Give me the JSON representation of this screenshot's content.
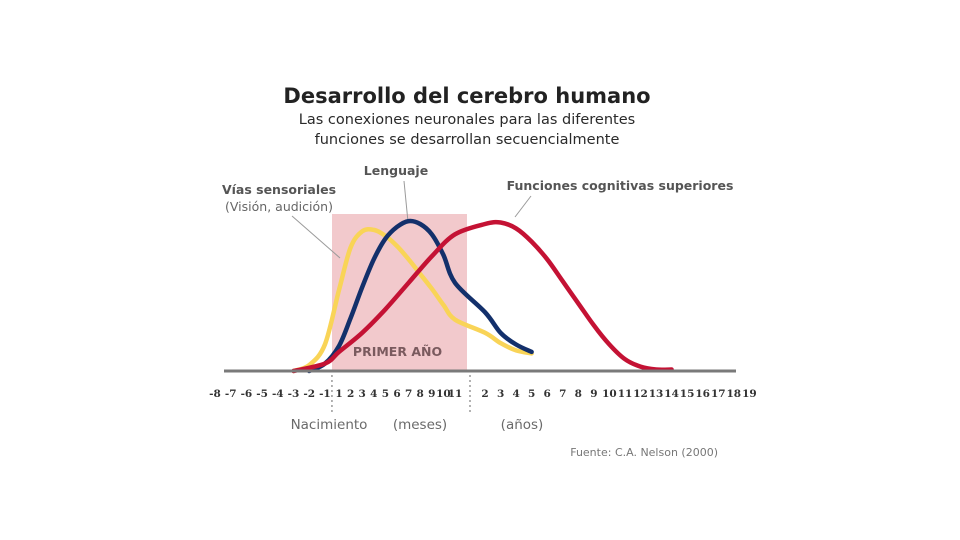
{
  "colors": {
    "sensory": "#f9d457",
    "language": "#13306b",
    "cognitive": "#c41234",
    "region": "#f2c9cc",
    "axis": "#7a7a7a",
    "leader": "#9a9a9a"
  },
  "chart_data": {
    "type": "line",
    "title": "Desarrollo del cerebro humano",
    "subtitle_lines": [
      "Las conexiones neuronales para las diferentes",
      "funciones se desarrollan secuencialmente"
    ],
    "x_ticks": {
      "prenatal_months": [
        "-8",
        "-7",
        "-6",
        "-5",
        "-4",
        "-3",
        "-2",
        "-1"
      ],
      "months": [
        "1",
        "2",
        "3",
        "4",
        "5",
        "6",
        "7",
        "8",
        "9",
        "10",
        "11"
      ],
      "years": [
        "2",
        "3",
        "4",
        "5",
        "6",
        "7",
        "8",
        "9",
        "10",
        "11",
        "12",
        "13",
        "14",
        "15",
        "16",
        "17",
        "18",
        "19"
      ]
    },
    "x_section_labels": {
      "birth": "Nacimiento",
      "months": "(meses)",
      "years": "(años)"
    },
    "highlight": {
      "label": "PRIMER AÑO",
      "start_tick": "1",
      "end_tick": "11"
    },
    "y_range": [
      0,
      1
    ],
    "grid": false,
    "series": [
      {
        "key": "sensory",
        "name": "Vías sensoriales",
        "name_sub": "(Visión, audición)",
        "color_key": "sensory",
        "points": [
          {
            "x": "-3",
            "y": 0.0
          },
          {
            "x": "-2",
            "y": 0.04
          },
          {
            "x": "-1",
            "y": 0.18
          },
          {
            "x": "1",
            "y": 0.55
          },
          {
            "x": "2",
            "y": 0.84
          },
          {
            "x": "3",
            "y": 0.95
          },
          {
            "x": "4",
            "y": 0.96
          },
          {
            "x": "5",
            "y": 0.92
          },
          {
            "x": "6",
            "y": 0.85
          },
          {
            "x": "7",
            "y": 0.76
          },
          {
            "x": "8",
            "y": 0.66
          },
          {
            "x": "9",
            "y": 0.56
          },
          {
            "x": "10",
            "y": 0.45
          },
          {
            "x": "11",
            "y": 0.35
          },
          {
            "x": "y2",
            "y": 0.26
          },
          {
            "x": "y3",
            "y": 0.19
          },
          {
            "x": "y4",
            "y": 0.14
          },
          {
            "x": "y5",
            "y": 0.12
          }
        ]
      },
      {
        "key": "language",
        "name": "Lenguaje",
        "color_key": "language",
        "points": [
          {
            "x": "-2",
            "y": 0.0
          },
          {
            "x": "-1",
            "y": 0.05
          },
          {
            "x": "1",
            "y": 0.17
          },
          {
            "x": "2",
            "y": 0.36
          },
          {
            "x": "3",
            "y": 0.57
          },
          {
            "x": "4",
            "y": 0.76
          },
          {
            "x": "5",
            "y": 0.9
          },
          {
            "x": "6",
            "y": 0.98
          },
          {
            "x": "7",
            "y": 1.02
          },
          {
            "x": "8",
            "y": 1.0
          },
          {
            "x": "9",
            "y": 0.93
          },
          {
            "x": "10",
            "y": 0.79
          },
          {
            "x": "11",
            "y": 0.6
          },
          {
            "x": "y2",
            "y": 0.4
          },
          {
            "x": "y3",
            "y": 0.26
          },
          {
            "x": "y4",
            "y": 0.18
          },
          {
            "x": "y5",
            "y": 0.13
          }
        ]
      },
      {
        "key": "cognitive",
        "name": "Funciones cognitivas superiores",
        "color_key": "cognitive",
        "points": [
          {
            "x": "-3",
            "y": 0.0
          },
          {
            "x": "-1",
            "y": 0.05
          },
          {
            "x": "1",
            "y": 0.13
          },
          {
            "x": "3",
            "y": 0.26
          },
          {
            "x": "5",
            "y": 0.42
          },
          {
            "x": "7",
            "y": 0.6
          },
          {
            "x": "9",
            "y": 0.78
          },
          {
            "x": "11",
            "y": 0.93
          },
          {
            "x": "y2",
            "y": 1.0
          },
          {
            "x": "y3",
            "y": 1.01
          },
          {
            "x": "y4",
            "y": 0.97
          },
          {
            "x": "y5",
            "y": 0.88
          },
          {
            "x": "y6",
            "y": 0.76
          },
          {
            "x": "y7",
            "y": 0.61
          },
          {
            "x": "y8",
            "y": 0.46
          },
          {
            "x": "y9",
            "y": 0.31
          },
          {
            "x": "y10",
            "y": 0.18
          },
          {
            "x": "y11",
            "y": 0.08
          },
          {
            "x": "y12",
            "y": 0.03
          },
          {
            "x": "y13",
            "y": 0.01
          },
          {
            "x": "y14",
            "y": 0.01
          }
        ]
      }
    ]
  },
  "source": "Fuente: C.A. Nelson (2000)"
}
